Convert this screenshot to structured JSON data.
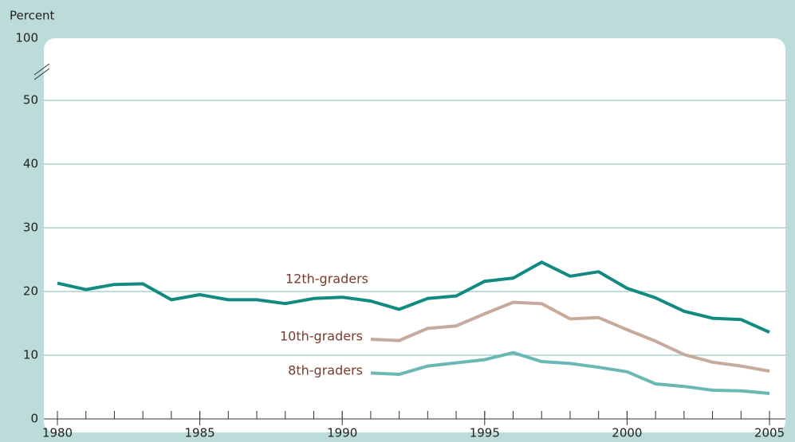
{
  "chart_data": {
    "type": "line",
    "y_label": "Percent",
    "x": [
      1980,
      1981,
      1982,
      1983,
      1984,
      1985,
      1986,
      1987,
      1988,
      1989,
      1990,
      1991,
      1992,
      1993,
      1994,
      1995,
      1996,
      1997,
      1998,
      1999,
      2000,
      2001,
      2002,
      2003,
      2004,
      2005
    ],
    "xlim": [
      1980,
      2005
    ],
    "xticks": [
      1980,
      1985,
      1990,
      1995,
      2000,
      2005
    ],
    "ylim": [
      0,
      100
    ],
    "yticks": [
      0,
      10,
      20,
      30,
      40,
      50,
      100
    ],
    "axis_break": true,
    "grid": true,
    "series": [
      {
        "name": "12th-graders",
        "color": "#128a82",
        "values": [
          21.3,
          20.3,
          21.1,
          21.2,
          18.7,
          19.5,
          18.7,
          18.7,
          18.1,
          18.9,
          19.1,
          18.5,
          17.2,
          18.9,
          19.3,
          21.6,
          22.1,
          24.6,
          22.4,
          23.1,
          20.5,
          19.0,
          16.9,
          15.8,
          15.6,
          13.6
        ]
      },
      {
        "name": "10th-graders",
        "color": "#c6aa9c",
        "values": [
          null,
          null,
          null,
          null,
          null,
          null,
          null,
          null,
          null,
          null,
          null,
          12.5,
          12.3,
          14.2,
          14.6,
          16.5,
          18.3,
          18.1,
          15.7,
          15.9,
          14.0,
          12.2,
          10.1,
          8.9,
          8.3,
          7.5
        ]
      },
      {
        "name": "8th-graders",
        "color": "#6ab8b6",
        "values": [
          null,
          null,
          null,
          null,
          null,
          null,
          null,
          null,
          null,
          null,
          null,
          7.2,
          7.0,
          8.3,
          8.8,
          9.3,
          10.4,
          9.0,
          8.7,
          8.1,
          7.4,
          5.5,
          5.1,
          4.5,
          4.4,
          4.0
        ]
      }
    ]
  }
}
